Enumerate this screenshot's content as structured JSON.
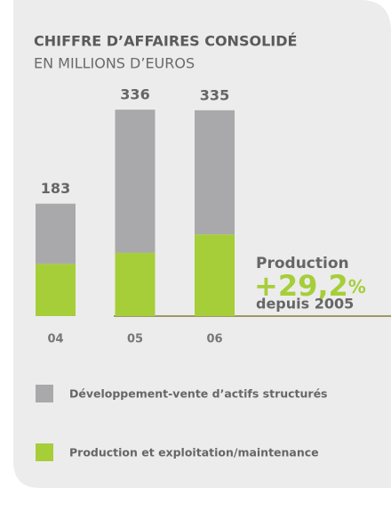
{
  "chart_data": {
    "type": "stacked_bar",
    "title": "CHIFFRE D’AFFAIRES CONSOLIDÉ",
    "subtitle": "EN MILLIONS D’EUROS",
    "categories": [
      "04",
      "05",
      "06"
    ],
    "series": [
      {
        "name": "Production et exploitation/maintenance",
        "color": "#a6ce39",
        "values": [
          85,
          103,
          133
        ]
      },
      {
        "name": "Développement-vente d’actifs structurés",
        "color": "#a9a9ab",
        "values": [
          98,
          233,
          202
        ]
      }
    ],
    "totals": [
      183,
      336,
      335
    ],
    "annotation": {
      "label": "Production",
      "value": "+29,2",
      "unit": "%",
      "note": "depuis 2005"
    }
  }
}
